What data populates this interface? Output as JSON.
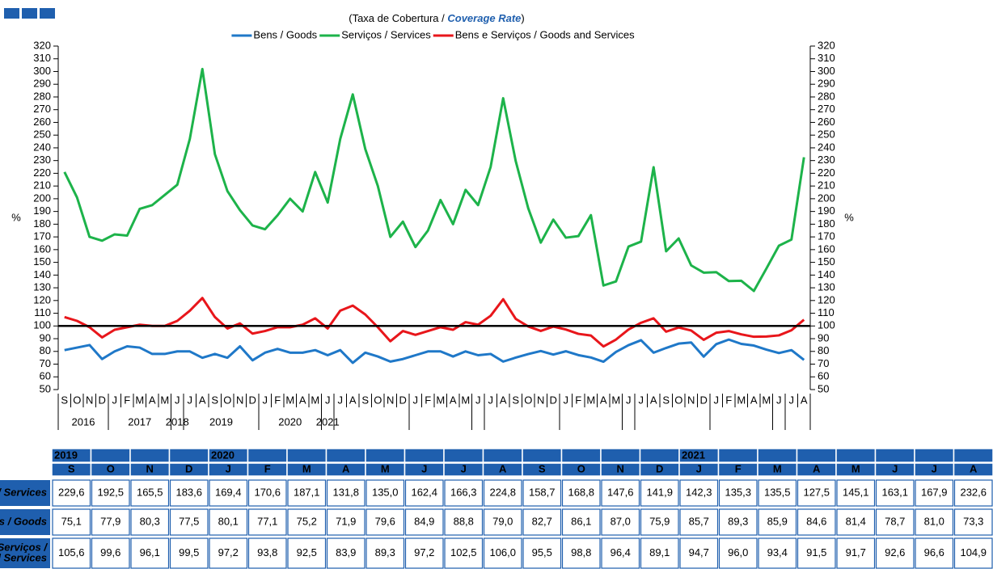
{
  "chart_data": {
    "type": "line",
    "title_parts": [
      "(Taxa de Cobertura  / ",
      "Coverage Rate",
      ")"
    ],
    "y_label": "%",
    "y2_label": "%",
    "categories": [
      "S",
      "O",
      "N",
      "D",
      "J",
      "F",
      "M",
      "A",
      "M",
      "J",
      "J",
      "A",
      "S",
      "O",
      "N",
      "D",
      "J",
      "F",
      "M",
      "A",
      "M",
      "J",
      "J",
      "A",
      "S",
      "O",
      "N",
      "D",
      "J",
      "F",
      "M",
      "A",
      "M",
      "J",
      "J",
      "A",
      "S",
      "O",
      "N",
      "D",
      "J",
      "F",
      "M",
      "A",
      "M",
      "J",
      "J",
      "A",
      "S",
      "O",
      "N",
      "D",
      "J",
      "F",
      "M",
      "A",
      "M",
      "J",
      "J",
      "A"
    ],
    "year_labels": [
      "2016",
      "2017",
      "2018",
      "2019",
      "2020",
      "2021"
    ],
    "series": [
      {
        "name": "Bens / Goods",
        "color": "#1f78c8",
        "values": [
          81,
          83,
          85,
          74,
          80,
          84,
          83,
          78,
          78,
          80,
          80,
          75,
          78,
          75,
          84,
          73,
          79,
          82,
          79,
          79,
          81,
          77,
          81,
          71,
          79,
          76,
          72,
          74,
          77,
          80,
          80,
          76,
          80,
          77,
          78,
          72,
          75.1,
          77.9,
          80.3,
          77.5,
          80.1,
          77.1,
          75.2,
          71.9,
          79.6,
          84.9,
          88.8,
          79.0,
          82.7,
          86.1,
          87.0,
          75.9,
          85.7,
          89.3,
          85.9,
          84.6,
          81.4,
          78.7,
          81.0,
          73.3
        ]
      },
      {
        "name": "Serviços / Services",
        "color": "#1db34a",
        "values": [
          221,
          201,
          170,
          167,
          172,
          171,
          192,
          195,
          203,
          211,
          247,
          302,
          235,
          206,
          191,
          179,
          176,
          187,
          200,
          190,
          221,
          197,
          247,
          282,
          239,
          210,
          170,
          182,
          162,
          175,
          199,
          180,
          207,
          195,
          225,
          279,
          229.6,
          192.5,
          165.5,
          183.6,
          169.4,
          170.6,
          187.1,
          131.8,
          135.0,
          162.4,
          166.3,
          224.8,
          158.7,
          168.8,
          147.6,
          141.9,
          142.3,
          135.3,
          135.5,
          127.5,
          145.1,
          163.1,
          167.9,
          232.6
        ]
      },
      {
        "name": "Bens e Serviços / Goods and Services",
        "color": "#e8161b",
        "values": [
          107,
          104,
          99,
          91,
          97,
          99,
          101,
          100,
          100,
          104,
          112,
          122,
          107,
          98,
          102,
          94,
          96,
          99,
          99,
          101,
          106,
          98,
          112,
          116,
          109,
          99,
          88,
          96,
          93,
          96,
          99,
          97,
          103,
          101,
          108,
          121,
          105.6,
          99.6,
          96.1,
          99.5,
          97.2,
          93.8,
          92.5,
          83.9,
          89.3,
          97.2,
          102.5,
          106.0,
          95.5,
          98.8,
          96.4,
          89.1,
          94.7,
          96.0,
          93.4,
          91.5,
          91.7,
          92.6,
          96.6,
          104.9
        ]
      }
    ],
    "reference_line": {
      "value": 100,
      "color": "#000000"
    },
    "ylim": [
      50,
      320
    ],
    "yticks": [
      50,
      60,
      70,
      80,
      90,
      100,
      110,
      120,
      130,
      140,
      150,
      160,
      170,
      180,
      190,
      200,
      210,
      220,
      230,
      240,
      250,
      260,
      270,
      280,
      290,
      300,
      310,
      320
    ],
    "y2lim": [
      50,
      320
    ],
    "y2ticks": [
      50,
      60,
      70,
      80,
      90,
      100,
      110,
      120,
      130,
      140,
      150,
      160,
      170,
      180,
      190,
      200,
      210,
      220,
      230,
      240,
      250,
      260,
      270,
      280,
      290,
      300,
      310,
      320
    ],
    "grid": false
  },
  "table": {
    "years": [
      "2019",
      null,
      null,
      null,
      "2020",
      null,
      null,
      null,
      null,
      null,
      null,
      null,
      null,
      null,
      null,
      null,
      "2021",
      null,
      null,
      null,
      null,
      null,
      null,
      null
    ],
    "months": [
      "S",
      "O",
      "N",
      "D",
      "J",
      "F",
      "M",
      "A",
      "M",
      "J",
      "J",
      "A",
      "S",
      "O",
      "N",
      "D",
      "J",
      "F",
      "M",
      "A",
      "M",
      "J",
      "J",
      "A"
    ],
    "rows": [
      {
        "label": [
          "Serviços / Services"
        ],
        "values": [
          "229,6",
          "192,5",
          "165,5",
          "183,6",
          "169,4",
          "170,6",
          "187,1",
          "131,8",
          "135,0",
          "162,4",
          "166,3",
          "224,8",
          "158,7",
          "168,8",
          "147,6",
          "141,9",
          "142,3",
          "135,3",
          "135,5",
          "127,5",
          "145,1",
          "163,1",
          "167,9",
          "232,6"
        ]
      },
      {
        "label": [
          "Bens / Goods"
        ],
        "values": [
          "75,1",
          "77,9",
          "80,3",
          "77,5",
          "80,1",
          "77,1",
          "75,2",
          "71,9",
          "79,6",
          "84,9",
          "88,8",
          "79,0",
          "82,7",
          "86,1",
          "87,0",
          "75,9",
          "85,7",
          "89,3",
          "85,9",
          "84,6",
          "81,4",
          "78,7",
          "81,0",
          "73,3"
        ]
      },
      {
        "label": [
          "Bens e Serviços /",
          "Goods and Services"
        ],
        "values": [
          "105,6",
          "99,6",
          "96,1",
          "99,5",
          "97,2",
          "93,8",
          "92,5",
          "83,9",
          "89,3",
          "97,2",
          "102,5",
          "106,0",
          "95,5",
          "98,8",
          "96,4",
          "89,1",
          "94,7",
          "96,0",
          "93,4",
          "91,5",
          "91,7",
          "92,6",
          "96,6",
          "104,9"
        ]
      }
    ]
  }
}
